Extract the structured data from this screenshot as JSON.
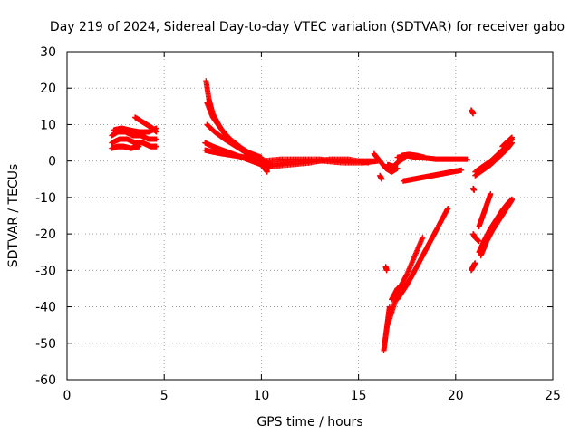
{
  "chart_data": {
    "type": "scatter",
    "title": "Day 219 of 2024, Sidereal Day-to-day VTEC variation (SDTVAR) for receiver gabo",
    "xlabel": "GPS time / hours",
    "ylabel": "SDTVAR / TECUs",
    "xlim": [
      0,
      25
    ],
    "ylim": [
      -60,
      30
    ],
    "xticks": [
      0,
      5,
      10,
      15,
      20,
      25
    ],
    "yticks": [
      -60,
      -50,
      -40,
      -30,
      -20,
      -10,
      0,
      10,
      20,
      30
    ],
    "grid": true,
    "legend": "none",
    "marker": "plus",
    "color": "#ff0000",
    "tracks": [
      {
        "x": [
          2.3,
          2.6,
          3.0,
          3.4,
          3.8,
          4.2,
          4.6
        ],
        "y": [
          7,
          8,
          8,
          7,
          7,
          6,
          6
        ]
      },
      {
        "x": [
          2.3,
          2.7,
          3.1,
          3.5,
          3.9,
          4.3,
          4.6
        ],
        "y": [
          5,
          6,
          6,
          5,
          5,
          4,
          4
        ]
      },
      {
        "x": [
          2.3,
          2.6,
          2.9,
          3.3,
          3.7
        ],
        "y": [
          3.5,
          4,
          4,
          3.5,
          4
        ]
      },
      {
        "x": [
          3.5,
          3.8,
          4.1,
          4.4,
          4.6
        ],
        "y": [
          12,
          11,
          10,
          9,
          8
        ]
      },
      {
        "x": [
          2.4,
          2.8,
          3.2,
          3.7,
          4.2,
          4.6
        ],
        "y": [
          8.5,
          9,
          8.5,
          8,
          8,
          9
        ]
      },
      {
        "x": [
          7.15,
          7.3,
          7.5,
          7.8,
          8.1,
          8.5,
          9.0,
          9.5,
          10.0
        ],
        "y": [
          22,
          17,
          13,
          10,
          7.5,
          5,
          3,
          2,
          1
        ]
      },
      {
        "x": [
          7.2,
          7.5,
          7.9,
          8.4,
          9.0,
          9.6,
          10.2
        ],
        "y": [
          16,
          12,
          9,
          6,
          3.5,
          1.5,
          0
        ]
      },
      {
        "x": [
          7.2,
          7.6,
          8.1,
          8.7,
          9.3,
          9.9,
          10.5
        ],
        "y": [
          10,
          8,
          6,
          4,
          2,
          0,
          -1
        ]
      },
      {
        "x": [
          7.1,
          7.5,
          8.0,
          8.5,
          9.0,
          9.5,
          10.0,
          10.3
        ],
        "y": [
          5,
          4,
          3,
          2,
          1,
          0,
          -1,
          -3
        ]
      },
      {
        "x": [
          7.1,
          7.5,
          8.0,
          8.6,
          9.2,
          9.8,
          10.4
        ],
        "y": [
          3,
          2.5,
          2,
          1.5,
          1,
          0,
          -2
        ]
      },
      {
        "x": [
          10.0,
          11.0,
          12.0,
          13.0,
          14.0,
          15.0,
          15.8
        ],
        "y": [
          0,
          0.5,
          0.5,
          0.5,
          0,
          0,
          0
        ]
      },
      {
        "x": [
          10.2,
          11.2,
          12.2,
          13.2,
          14.2,
          15.2,
          16.0
        ],
        "y": [
          -1,
          -0.5,
          0,
          0,
          -0.5,
          -0.5,
          0
        ]
      },
      {
        "x": [
          10.5,
          11.5,
          12.5,
          13.5,
          14.5,
          15.5
        ],
        "y": [
          -1.5,
          -1,
          -0.5,
          0.5,
          0.5,
          -0.5
        ]
      },
      {
        "x": [
          15.8,
          16.1,
          16.4,
          16.7,
          17.0
        ],
        "y": [
          2,
          0,
          -2,
          -3,
          -2
        ]
      },
      {
        "x": [
          16.5,
          16.8,
          17.1,
          17.4
        ],
        "y": [
          -1,
          -1.5,
          0,
          1
        ]
      },
      {
        "x": [
          16.1,
          16.2
        ],
        "y": [
          -4,
          -5
        ]
      },
      {
        "x": [
          17.0,
          17.5,
          18.0,
          18.5,
          19.0,
          19.5,
          20.0,
          20.6
        ],
        "y": [
          1,
          1.5,
          1,
          0.8,
          0.5,
          0.5,
          0.5,
          0.5
        ]
      },
      {
        "x": [
          17.2,
          17.6,
          18.0,
          18.4
        ],
        "y": [
          1.5,
          1.8,
          1.5,
          1
        ]
      },
      {
        "x": [
          17.3,
          17.8,
          18.3,
          18.8,
          19.3,
          19.8,
          20.3
        ],
        "y": [
          -5.5,
          -5,
          -4.5,
          -4,
          -3.5,
          -3,
          -2.5
        ]
      },
      {
        "x": [
          16.4,
          16.45
        ],
        "y": [
          -29,
          -30
        ]
      },
      {
        "x": [
          16.3,
          16.4,
          16.5,
          16.6
        ],
        "y": [
          -52,
          -48,
          -44,
          -40
        ]
      },
      {
        "x": [
          16.5,
          16.8,
          17.1,
          17.5,
          17.9,
          18.3
        ],
        "y": [
          -45,
          -40,
          -35,
          -31,
          -26,
          -21
        ]
      },
      {
        "x": [
          16.7,
          17.0,
          17.3
        ],
        "y": [
          -38,
          -35,
          -34
        ]
      },
      {
        "x": [
          17.0,
          17.5,
          18.0,
          18.5,
          19.0,
          19.6
        ],
        "y": [
          -38,
          -34,
          -29,
          -24,
          -19,
          -13
        ]
      },
      {
        "x": [
          17.2,
          17.7,
          18.2,
          18.7,
          19.2,
          19.6
        ],
        "y": [
          -36,
          -32,
          -27,
          -22,
          -17,
          -13
        ]
      },
      {
        "x": [
          20.8,
          20.9
        ],
        "y": [
          14,
          13
        ]
      },
      {
        "x": [
          20.9,
          20.95
        ],
        "y": [
          -7.5,
          -8
        ]
      },
      {
        "x": [
          20.9,
          21.0,
          21.2
        ],
        "y": [
          -20,
          -21,
          -22
        ]
      },
      {
        "x": [
          20.8,
          20.9,
          21.0
        ],
        "y": [
          -30,
          -29,
          -28
        ]
      },
      {
        "x": [
          21.2,
          21.4,
          21.6,
          21.8
        ],
        "y": [
          -18,
          -15,
          -12,
          -9
        ]
      },
      {
        "x": [
          21.0,
          21.4,
          21.8,
          22.2,
          22.6,
          22.9
        ],
        "y": [
          -4,
          -2.5,
          -1,
          1,
          3,
          5
        ]
      },
      {
        "x": [
          21.0,
          21.4,
          21.8,
          22.2,
          22.6,
          22.9
        ],
        "y": [
          -3,
          -1.5,
          0,
          2,
          4,
          6
        ]
      },
      {
        "x": [
          22.4,
          22.6,
          22.9
        ],
        "y": [
          4,
          5,
          6.5
        ]
      },
      {
        "x": [
          21.3,
          21.6,
          21.9,
          22.2,
          22.5,
          22.8,
          22.9
        ],
        "y": [
          -26,
          -22,
          -19,
          -16.5,
          -14,
          -11.5,
          -10.5
        ]
      },
      {
        "x": [
          21.2,
          21.5,
          21.8,
          22.1,
          22.4,
          22.7,
          22.9
        ],
        "y": [
          -25,
          -21.5,
          -18.5,
          -16,
          -13.5,
          -11.5,
          -10.5
        ]
      }
    ]
  }
}
